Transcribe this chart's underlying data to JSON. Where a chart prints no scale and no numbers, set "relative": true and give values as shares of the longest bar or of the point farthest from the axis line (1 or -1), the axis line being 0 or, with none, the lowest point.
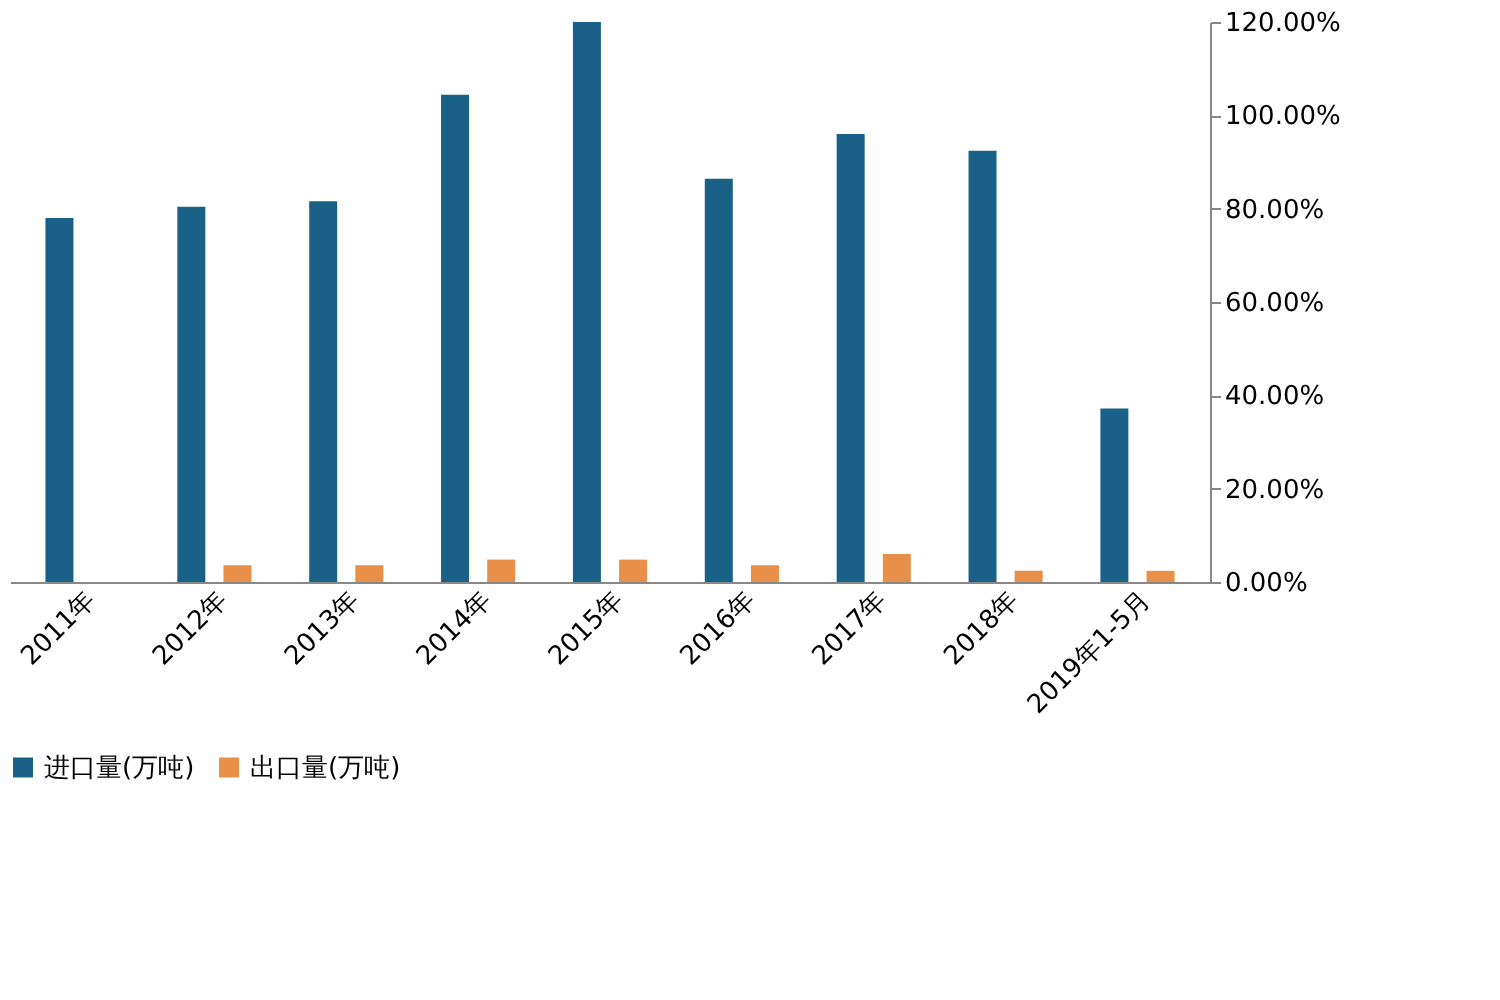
{
  "chart_data": {
    "type": "bar",
    "relative": true,
    "categories": [
      "2011年",
      "2012年",
      "2013年",
      "2014年",
      "2015年",
      "2016年",
      "2017年",
      "2018年",
      "2019年1-5月"
    ],
    "series": [
      {
        "name": "进口量(万吨)",
        "color": "#1a6187",
        "values": [
          0.65,
          0.67,
          0.68,
          0.87,
          1,
          0.72,
          0.8,
          0.77,
          0.31
        ]
      },
      {
        "name": "出口量(万吨)",
        "color": "#e8904a",
        "values": [
          0,
          0.03,
          0.03,
          0.04,
          0.04,
          0.03,
          0.05,
          0.02,
          0.02
        ]
      }
    ],
    "y2lim": [
      0,
      120
    ],
    "y2ticks": [
      {
        "value": 0,
        "label": "0.00%"
      },
      {
        "value": 20,
        "label": "20.00%"
      },
      {
        "value": 40,
        "label": "40.00%"
      },
      {
        "value": 60,
        "label": "60.00%"
      },
      {
        "value": 80,
        "label": "80.00%"
      },
      {
        "value": 100,
        "label": "100.00%"
      },
      {
        "value": 120,
        "label": "120.00%"
      }
    ],
    "legend": "bottom",
    "grid": false
  }
}
